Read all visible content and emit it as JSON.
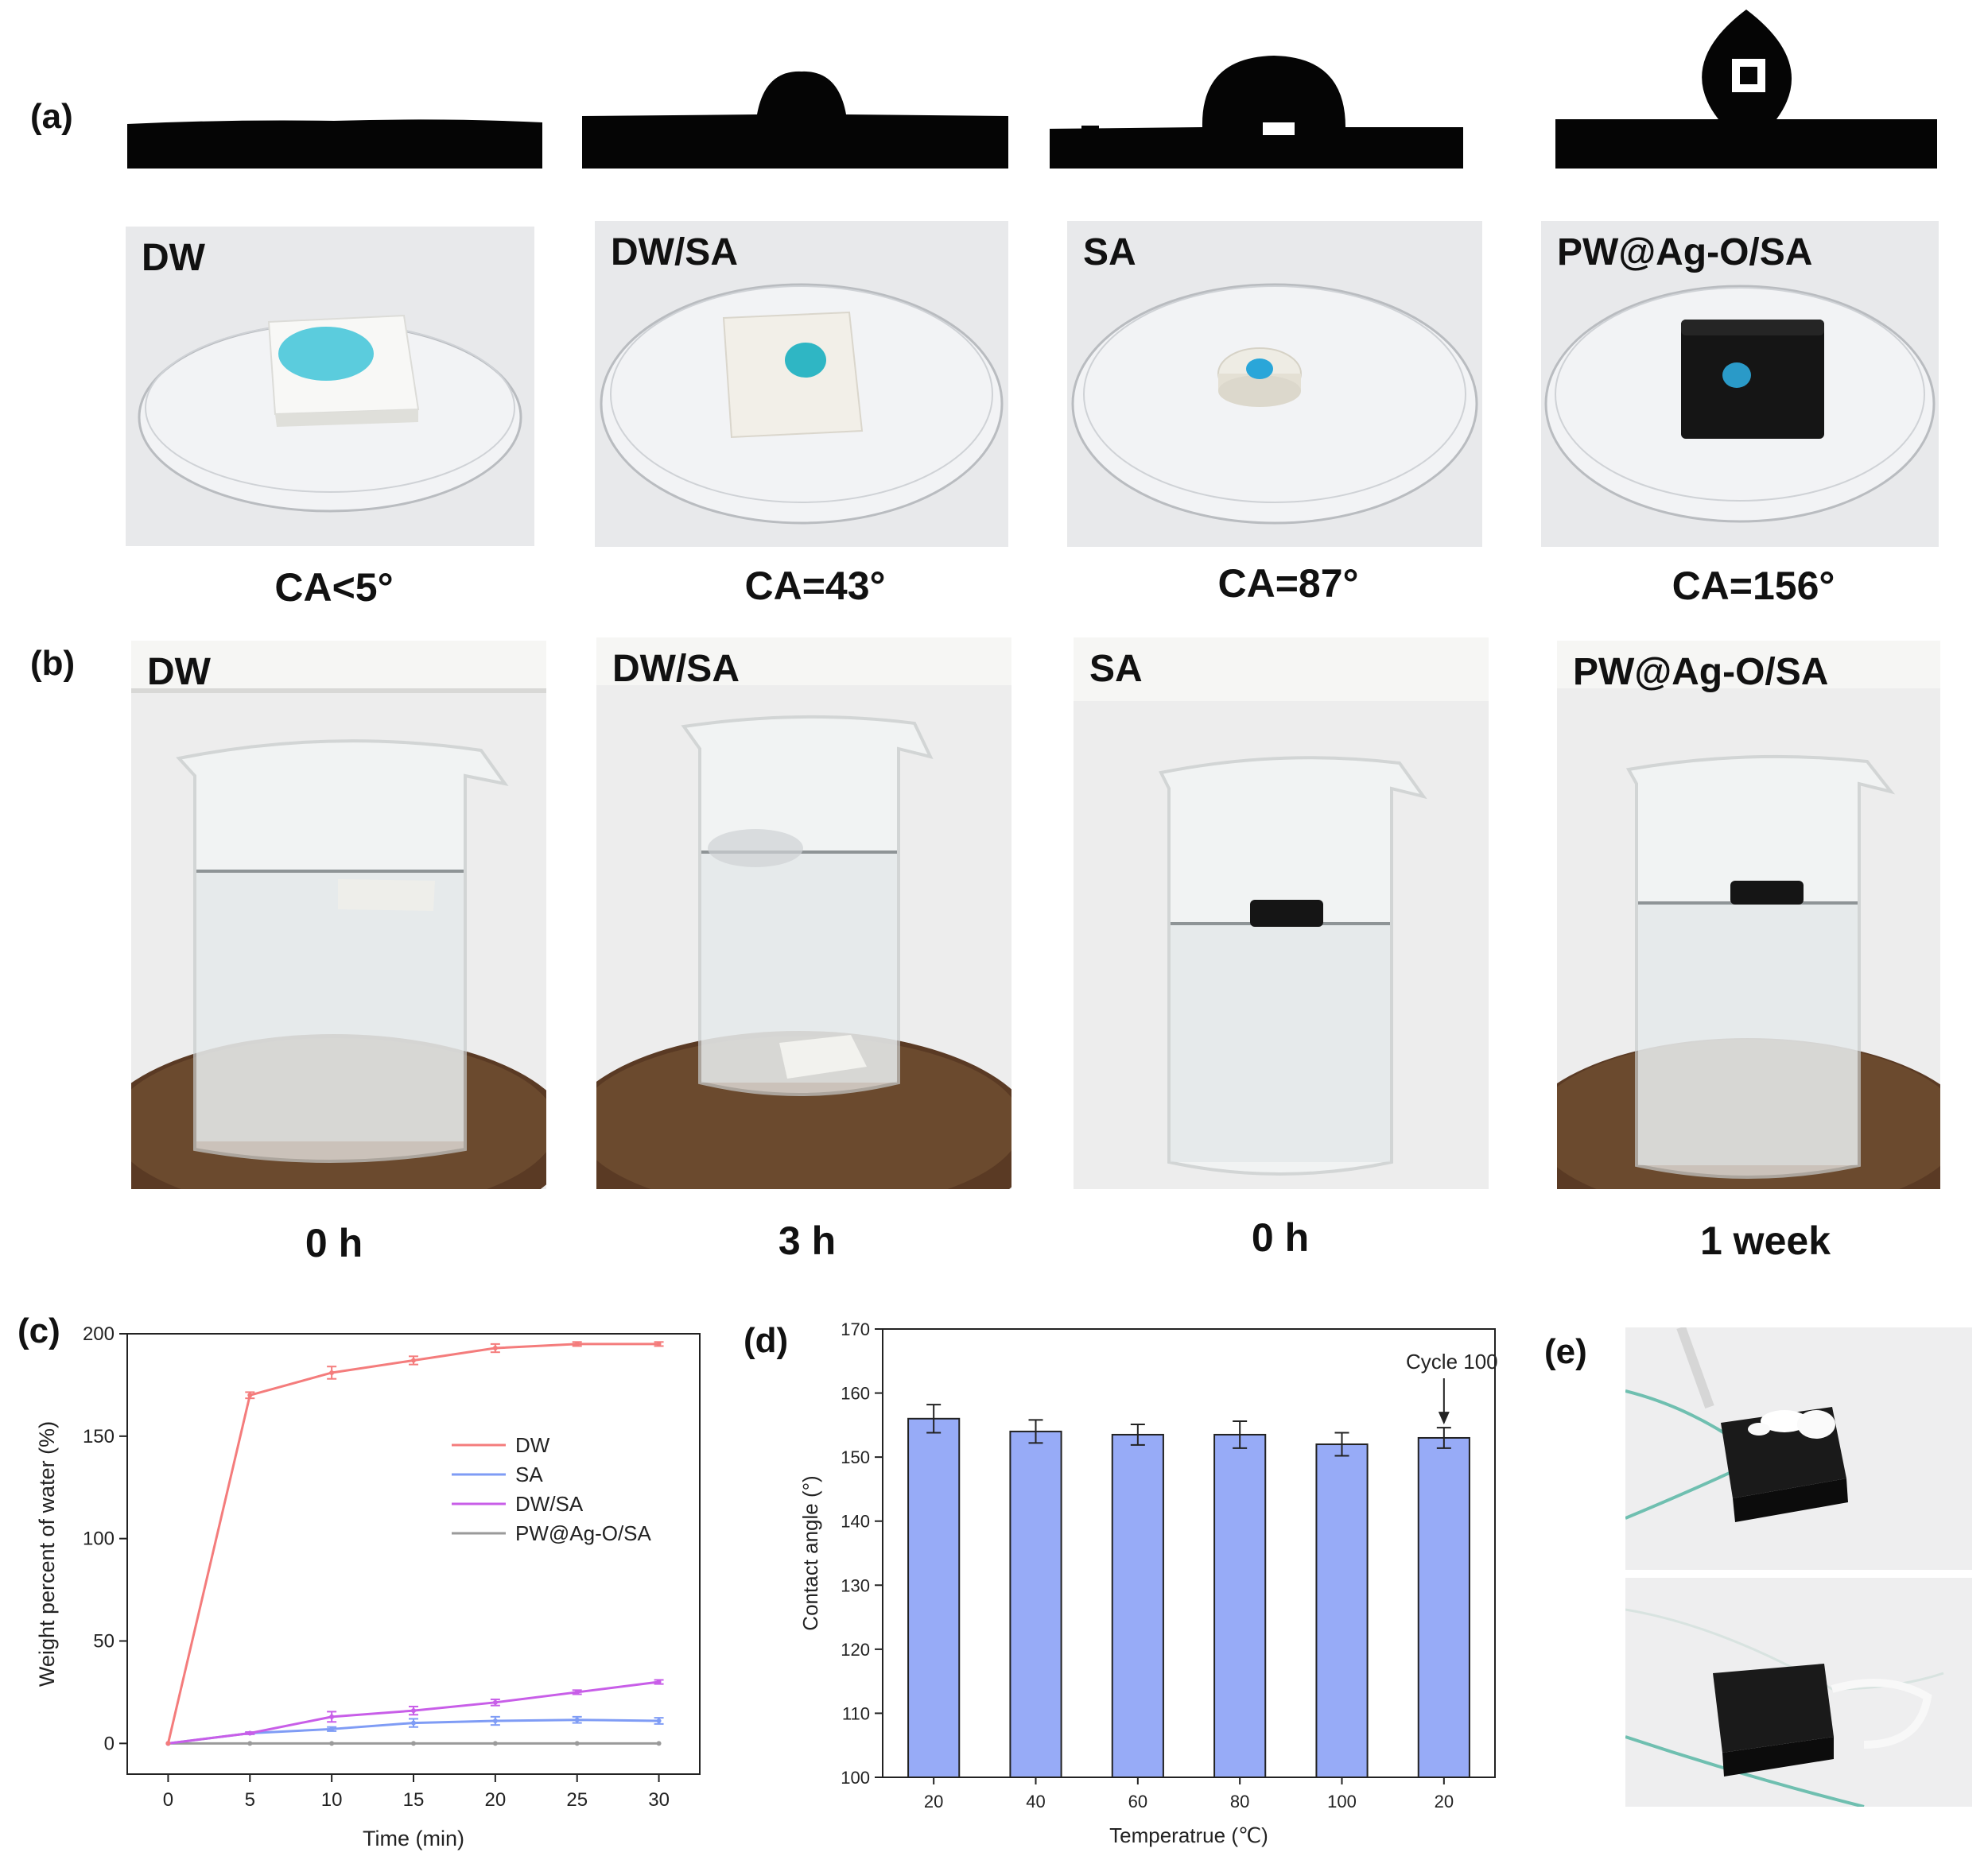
{
  "panels": {
    "a": {
      "letter": "(a)",
      "samples": [
        {
          "label": "DW",
          "caption": "CA<5°"
        },
        {
          "label": "DW/SA",
          "caption": "CA=43°"
        },
        {
          "label": "SA",
          "caption": "CA=87°"
        },
        {
          "label": "PW@Ag-O/SA",
          "caption": "CA=156°"
        }
      ]
    },
    "b": {
      "letter": "(b)",
      "samples": [
        {
          "label": "DW",
          "caption": "0 h"
        },
        {
          "label": "DW/SA",
          "caption": "3 h"
        },
        {
          "label": "SA",
          "caption": "0 h"
        },
        {
          "label": "PW@Ag-O/SA",
          "caption": "1 week"
        }
      ]
    },
    "c": {
      "letter": "(c)"
    },
    "d": {
      "letter": "(d)",
      "annotation": "Cycle 100"
    },
    "e": {
      "letter": "(e)"
    }
  },
  "colors": {
    "DW": "#f47c7c",
    "SA": "#7f9cf5",
    "DW_SA": "#c85ee8",
    "PW": "#9a9a9a",
    "bar_fill": "#97abf7"
  },
  "chart_data": [
    {
      "id": "c",
      "type": "line",
      "xlabel": "Time (min)",
      "ylabel": "Weight percent of water (%)",
      "x": [
        0,
        5,
        10,
        15,
        20,
        25,
        30
      ],
      "xlim": [
        -2.5,
        32.5
      ],
      "ylim": [
        -15,
        200
      ],
      "xticks": [
        "0",
        "5",
        "10",
        "15",
        "20",
        "25",
        "30"
      ],
      "yticks": [
        "0",
        "50",
        "100",
        "150",
        "200"
      ],
      "legend_position": "center-right",
      "series": [
        {
          "name": "DW",
          "values": [
            0,
            170,
            181,
            187,
            193,
            195,
            195
          ],
          "errors": [
            0,
            1.5,
            3,
            2,
            2,
            1,
            1
          ]
        },
        {
          "name": "SA",
          "values": [
            0,
            5,
            7,
            10,
            11,
            11.5,
            11
          ],
          "errors": [
            0,
            0.5,
            1,
            2,
            2,
            1.5,
            1.5
          ]
        },
        {
          "name": "DW/SA",
          "values": [
            0,
            5,
            13,
            16,
            20,
            25,
            30
          ],
          "errors": [
            0,
            0.5,
            2.5,
            2,
            1.5,
            1,
            1
          ]
        },
        {
          "name": "PW@Ag-O/SA",
          "values": [
            0,
            0,
            0,
            0,
            0,
            0,
            0
          ],
          "errors": [
            0,
            0,
            0,
            0,
            0,
            0,
            0
          ]
        }
      ]
    },
    {
      "id": "d",
      "type": "bar",
      "xlabel": "Temperatrue (℃)",
      "ylabel": "Contact angle (°)",
      "categories": [
        "20",
        "40",
        "60",
        "80",
        "100",
        "20"
      ],
      "values": [
        156,
        154,
        153.5,
        153.5,
        152,
        153
      ],
      "errors": [
        2.2,
        1.8,
        1.6,
        2.1,
        1.8,
        1.6
      ],
      "ylim": [
        100,
        170
      ],
      "yticks": [
        "100",
        "110",
        "120",
        "130",
        "140",
        "150",
        "160",
        "170"
      ]
    }
  ]
}
